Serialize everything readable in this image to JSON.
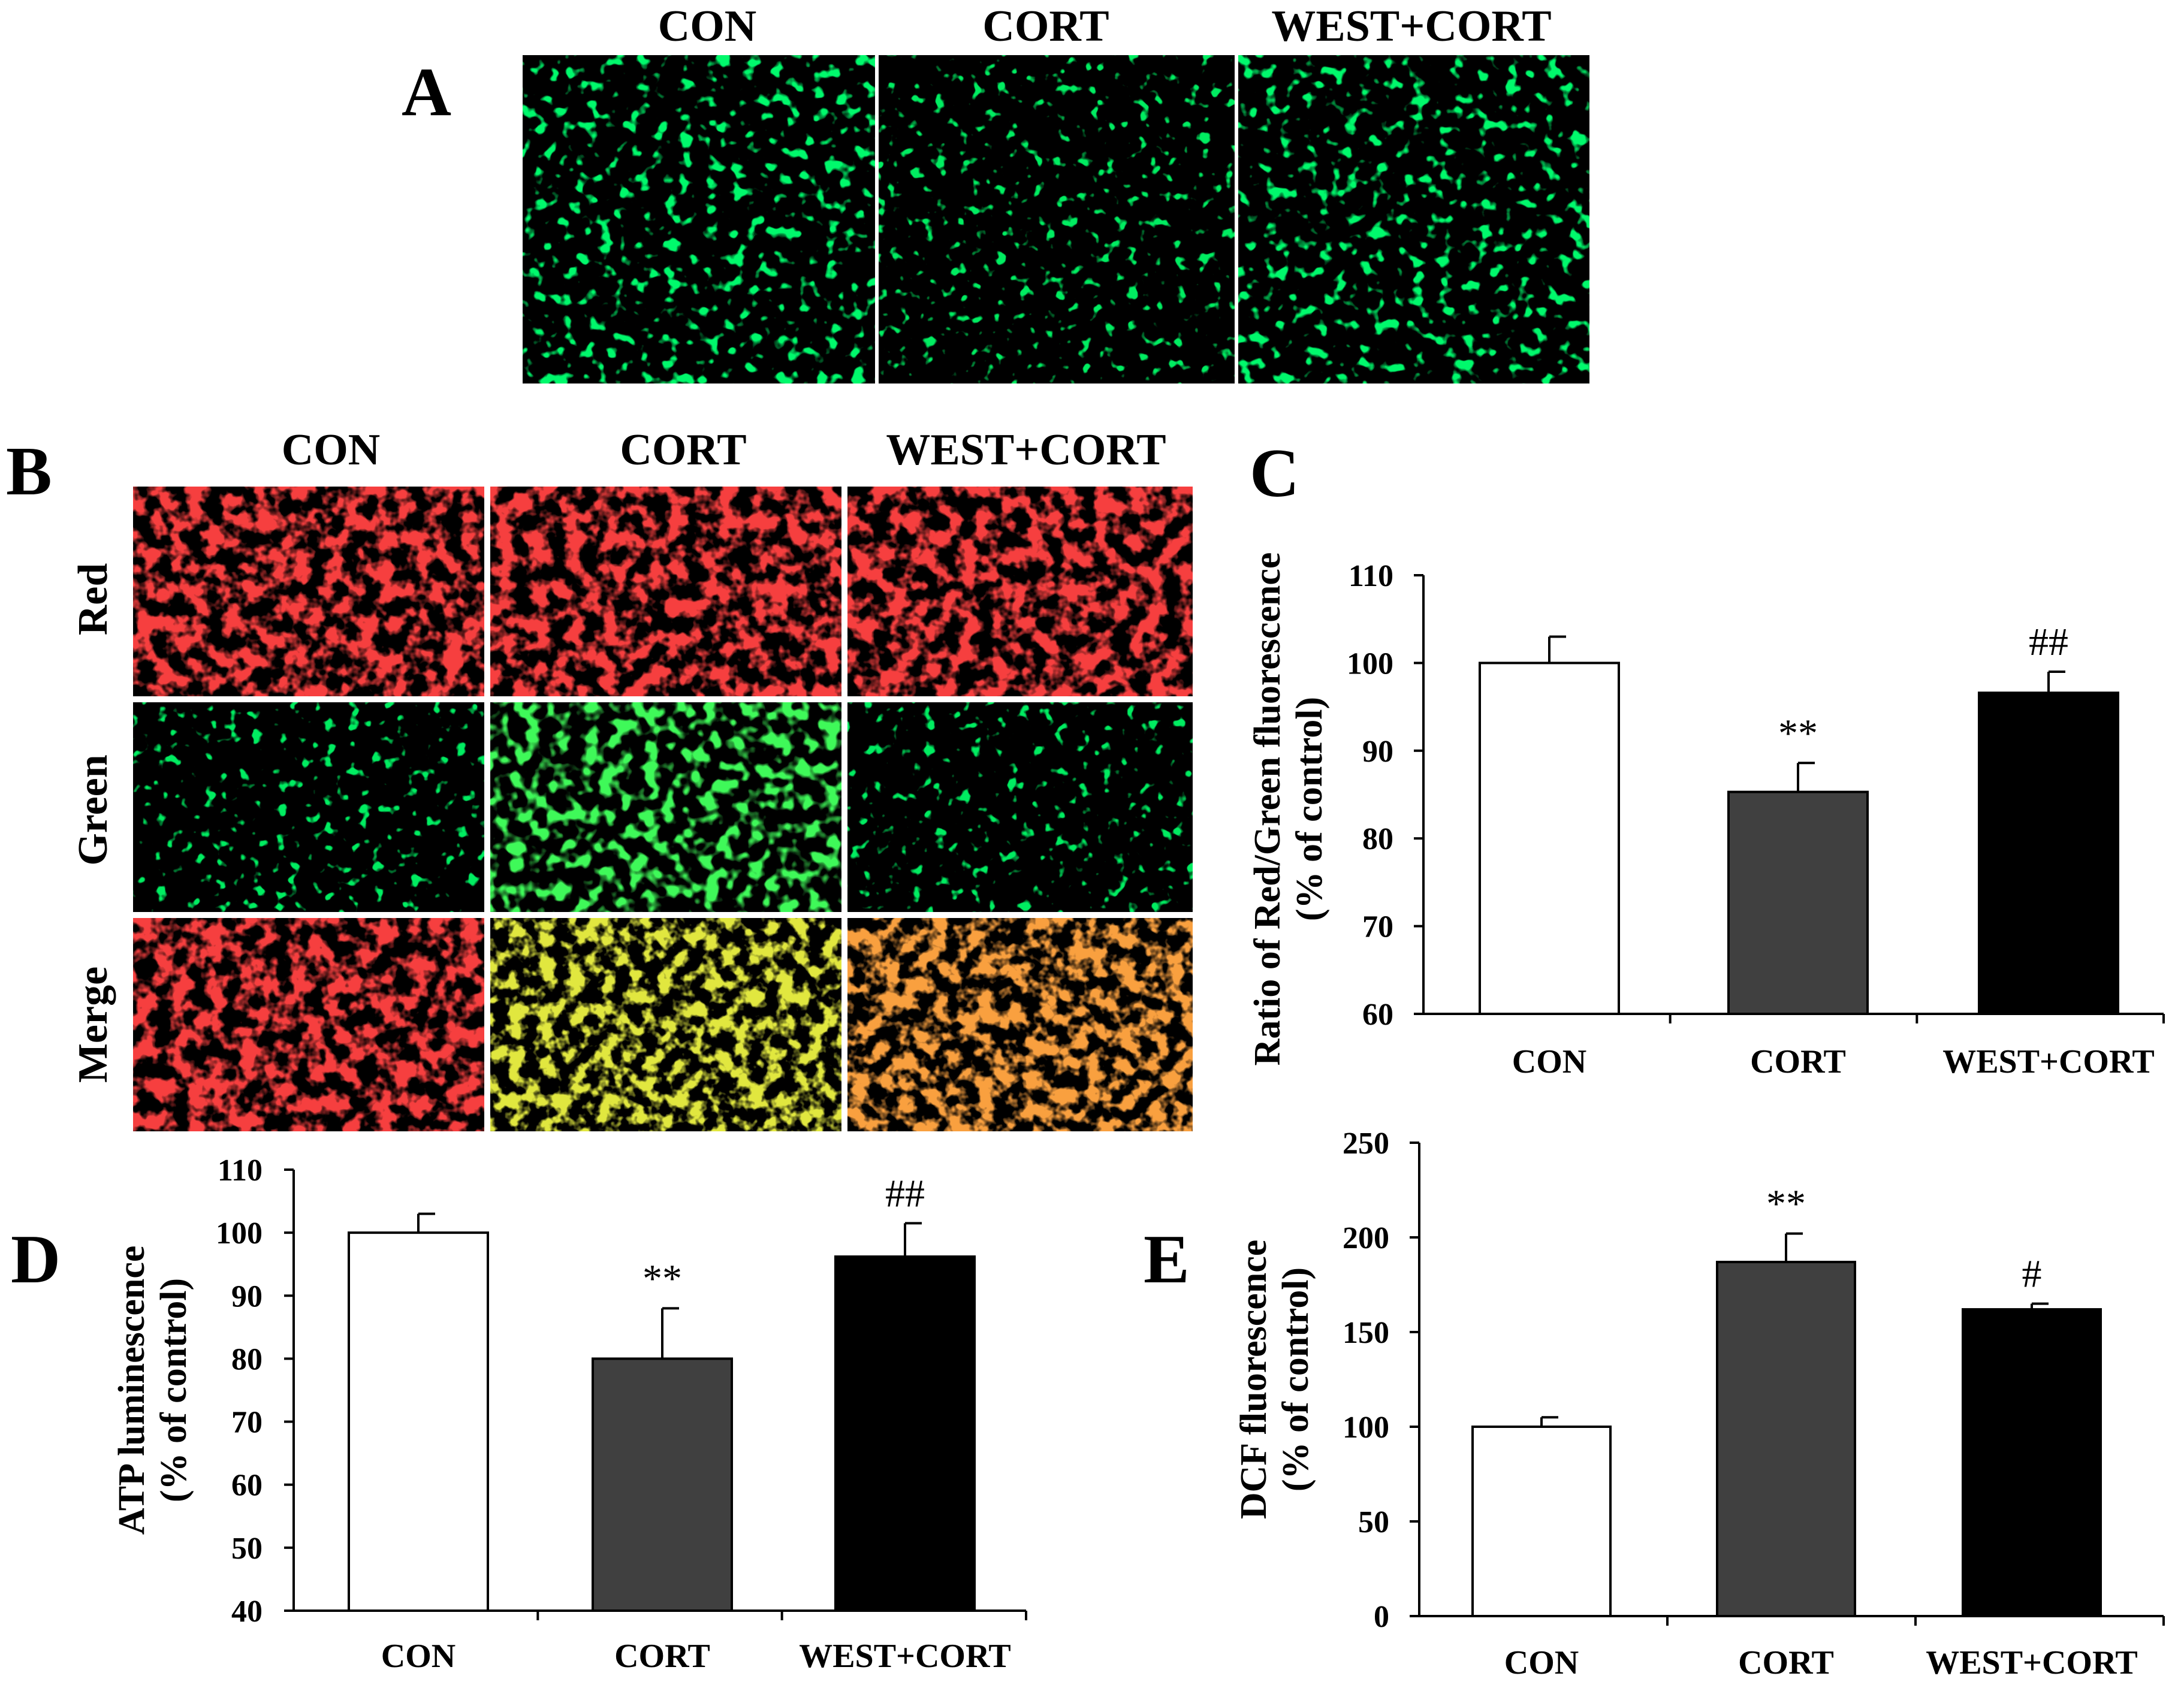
{
  "panels": {
    "A": {
      "letter": "A",
      "columns": [
        "CON",
        "CORT",
        "WEST+CORT"
      ]
    },
    "B": {
      "letter": "B",
      "columns": [
        "CON",
        "CORT",
        "WEST+CORT"
      ],
      "rows": [
        "Red",
        "Green",
        "Merge"
      ]
    },
    "C": {
      "letter": "C"
    },
    "D": {
      "letter": "D"
    },
    "E": {
      "letter": "E"
    }
  },
  "chart_data": [
    {
      "id": "C",
      "type": "bar",
      "categories": [
        "CON",
        "CORT",
        "WEST+CORT"
      ],
      "values": [
        100,
        85.3,
        96.6
      ],
      "errors": [
        3,
        3.3,
        2.4
      ],
      "significance": [
        "",
        "**",
        "##"
      ],
      "ylabel_lines": [
        "Ratio of Red/Green fluorescence",
        "(% of control)"
      ],
      "ylim": [
        60,
        110
      ],
      "yticks": [
        60,
        70,
        80,
        90,
        100,
        110
      ],
      "bar_colors": [
        "#ffffff",
        "#404040",
        "#000000"
      ]
    },
    {
      "id": "D",
      "type": "bar",
      "categories": [
        "CON",
        "CORT",
        "WEST+CORT"
      ],
      "values": [
        100,
        80,
        96.2
      ],
      "errors": [
        3,
        8,
        5.3
      ],
      "significance": [
        "",
        "**",
        "##"
      ],
      "ylabel_lines": [
        "ATP luminescence",
        "(% of control)"
      ],
      "ylim": [
        40,
        110
      ],
      "yticks": [
        40,
        50,
        60,
        70,
        80,
        90,
        100,
        110
      ],
      "bar_colors": [
        "#ffffff",
        "#404040",
        "#000000"
      ]
    },
    {
      "id": "E",
      "type": "bar",
      "categories": [
        "CON",
        "CORT",
        "WEST+CORT"
      ],
      "values": [
        100,
        187,
        162
      ],
      "errors": [
        5,
        15,
        3
      ],
      "significance": [
        "",
        "**",
        "#"
      ],
      "ylabel_lines": [
        "DCF fluorescence",
        "(% of control)"
      ],
      "ylim": [
        0,
        250
      ],
      "yticks": [
        0,
        50,
        100,
        150,
        200,
        250
      ],
      "bar_colors": [
        "#ffffff",
        "#404040",
        "#000000"
      ]
    }
  ]
}
